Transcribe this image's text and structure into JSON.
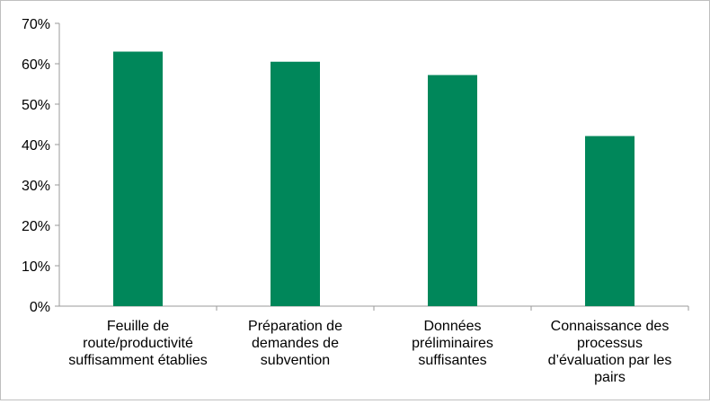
{
  "chart_data": {
    "type": "bar",
    "title": "",
    "xlabel": "",
    "ylabel": "",
    "categories": [
      [
        "Feuille de",
        "route/productivité",
        "suffisamment établies"
      ],
      [
        "Préparation de",
        "demandes de",
        "subvention"
      ],
      [
        "Données",
        "préliminaires",
        "suffisantes"
      ],
      [
        "Connaissance des",
        "processus",
        "d’évaluation  par les",
        "pairs"
      ]
    ],
    "values": [
      0.63,
      0.605,
      0.572,
      0.421
    ],
    "ylim": [
      0,
      0.7
    ],
    "yticks": [
      0,
      0.1,
      0.2,
      0.3,
      0.4,
      0.5,
      0.6,
      0.7
    ],
    "ytick_labels": [
      "0%",
      "10%",
      "20%",
      "30%",
      "40%",
      "50%",
      "60%",
      "70%"
    ],
    "grid": false,
    "legend": "none",
    "bar_color": "#00875A"
  }
}
